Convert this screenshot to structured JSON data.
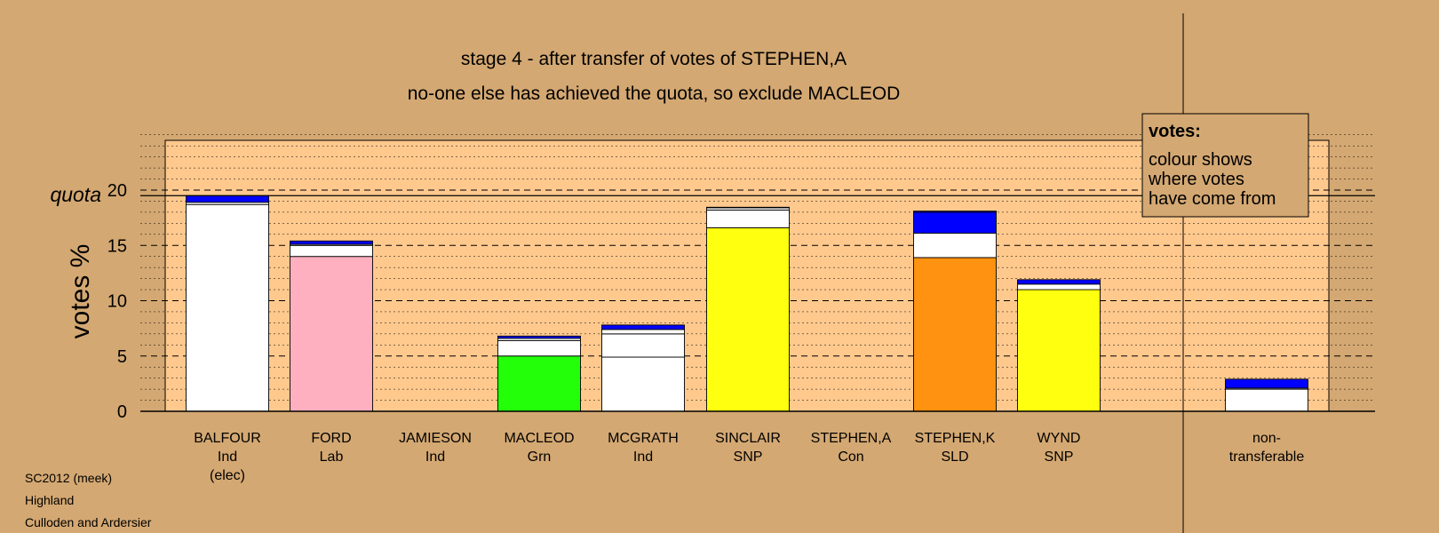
{
  "chart_data": {
    "type": "bar",
    "stacked": true,
    "title": "stage 4 - after transfer of votes of STEPHEN,A",
    "subtitle": "no-one else has achieved the quota, so exclude MACLEOD",
    "ylabel": "votes %",
    "ylim": [
      0,
      25
    ],
    "yticks": [
      "0",
      "5",
      "10",
      "15",
      "20"
    ],
    "quota_label": "quota",
    "quota": 19.5,
    "categories": [
      {
        "name": "BALFOUR",
        "party": "Ind",
        "note": "(elec)"
      },
      {
        "name": "FORD",
        "party": "Lab",
        "note": ""
      },
      {
        "name": "JAMIESON",
        "party": "Ind",
        "note": ""
      },
      {
        "name": "MACLEOD",
        "party": "Grn",
        "note": ""
      },
      {
        "name": "MCGRATH",
        "party": "Ind",
        "note": ""
      },
      {
        "name": "SINCLAIR",
        "party": "SNP",
        "note": ""
      },
      {
        "name": "STEPHEN,A",
        "party": "Con",
        "note": ""
      },
      {
        "name": "STEPHEN,K",
        "party": "SLD",
        "note": ""
      },
      {
        "name": "WYND",
        "party": "SNP",
        "note": ""
      },
      {
        "name": "non-",
        "party": "transferable",
        "note": ""
      }
    ],
    "bars": [
      [
        {
          "v": 18.7,
          "c": "#ffffff"
        },
        {
          "v": 0.2,
          "c": "#ffffff"
        },
        {
          "v": 0.6,
          "c": "#0000ff"
        }
      ],
      [
        {
          "v": 14.0,
          "c": "#ffb0c0"
        },
        {
          "v": 1.0,
          "c": "#ffffff"
        },
        {
          "v": 0.1,
          "c": "#ffffff"
        },
        {
          "v": 0.3,
          "c": "#0000ff"
        }
      ],
      [],
      [
        {
          "v": 5.0,
          "c": "#22ff08"
        },
        {
          "v": 1.4,
          "c": "#ffffff"
        },
        {
          "v": 0.2,
          "c": "#ffffff"
        },
        {
          "v": 0.2,
          "c": "#0000ff"
        }
      ],
      [
        {
          "v": 4.9,
          "c": "#ffffff"
        },
        {
          "v": 2.1,
          "c": "#ffffff"
        },
        {
          "v": 0.4,
          "c": "#ffffff"
        },
        {
          "v": 0.4,
          "c": "#0000ff"
        }
      ],
      [
        {
          "v": 16.6,
          "c": "#ffff10"
        },
        {
          "v": 1.6,
          "c": "#ffffff"
        },
        {
          "v": 0.2,
          "c": "#ffffff"
        },
        {
          "v": 0.05,
          "c": "#0000ff"
        }
      ],
      [],
      [
        {
          "v": 13.9,
          "c": "#ff9210"
        },
        {
          "v": 2.2,
          "c": "#ffffff"
        },
        {
          "v": 1.9,
          "c": "#0000ff"
        },
        {
          "v": 0.1,
          "c": "#0000ff"
        }
      ],
      [
        {
          "v": 11.0,
          "c": "#ffff10"
        },
        {
          "v": 0.5,
          "c": "#ffffff"
        },
        {
          "v": 0.4,
          "c": "#0000ff"
        }
      ],
      [
        {
          "v": 2.0,
          "c": "#ffffff"
        },
        {
          "v": 0.1,
          "c": "#ffffff"
        },
        {
          "v": 0.8,
          "c": "#0000ff"
        }
      ]
    ]
  },
  "legend": {
    "title": "votes:",
    "lines": [
      "colour shows",
      "where votes",
      "have come from"
    ]
  },
  "footer": [
    "SC2012 (meek)",
    "Highland",
    "Culloden and Ardersier"
  ],
  "colors": {
    "background": "#d4a872",
    "plot_bg": "#ffc98e"
  }
}
